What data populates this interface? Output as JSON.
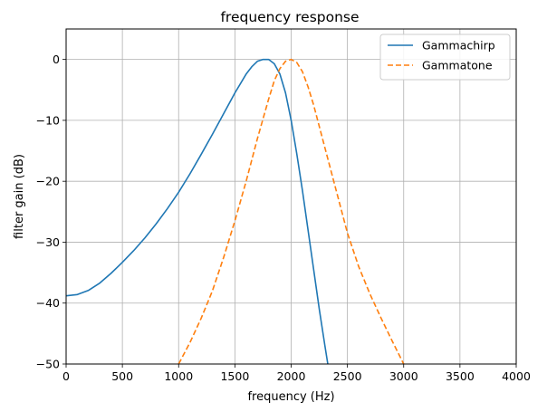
{
  "chart_data": {
    "type": "line",
    "title": "frequency response",
    "xlabel": "frequency (Hz)",
    "ylabel": "filter gain (dB)",
    "xlim": [
      0,
      4000
    ],
    "ylim": [
      -50,
      5
    ],
    "grid": true,
    "legend_position": "top-right",
    "x_ticks": [
      0,
      500,
      1000,
      1500,
      2000,
      2500,
      3000,
      3500,
      4000
    ],
    "x_tick_labels": [
      "0",
      "500",
      "1000",
      "1500",
      "2000",
      "2500",
      "3000",
      "3500",
      "4000"
    ],
    "y_ticks": [
      0,
      -10,
      -20,
      -30,
      -40,
      -50
    ],
    "y_tick_labels": [
      "0",
      "−10",
      "−20",
      "−30",
      "−40",
      "−50"
    ],
    "series": [
      {
        "name": "Gammachirp",
        "color": "#1f77b4",
        "style": "solid",
        "x": [
          0,
          100,
          200,
          300,
          400,
          500,
          600,
          700,
          800,
          900,
          1000,
          1100,
          1200,
          1300,
          1400,
          1500,
          1600,
          1650,
          1700,
          1750,
          1800,
          1850,
          1900,
          1950,
          2000,
          2050,
          2100,
          2150,
          2200,
          2250,
          2300,
          2330
        ],
        "y": [
          -38.8,
          -38.6,
          -37.9,
          -36.7,
          -35.1,
          -33.3,
          -31.4,
          -29.3,
          -27.0,
          -24.5,
          -21.8,
          -18.8,
          -15.6,
          -12.3,
          -8.9,
          -5.5,
          -2.4,
          -1.2,
          -0.3,
          0.0,
          0.0,
          -0.7,
          -2.4,
          -5.5,
          -10.0,
          -15.5,
          -21.5,
          -28.0,
          -34.5,
          -41.0,
          -47.0,
          -50.5
        ]
      },
      {
        "name": "Gammatone",
        "color": "#ff7f0e",
        "style": "dashed",
        "x": [
          1000,
          1100,
          1200,
          1300,
          1400,
          1500,
          1600,
          1700,
          1800,
          1850,
          1900,
          1950,
          2000,
          2050,
          2100,
          2150,
          2200,
          2300,
          2400,
          2500,
          2600,
          2700,
          2800,
          2900,
          3000
        ],
        "y": [
          -50.0,
          -46.5,
          -42.5,
          -38.0,
          -32.5,
          -26.5,
          -20.0,
          -13.0,
          -6.5,
          -3.5,
          -1.5,
          -0.3,
          0.0,
          -0.5,
          -2.0,
          -4.5,
          -7.5,
          -14.5,
          -21.5,
          -28.5,
          -34.0,
          -38.5,
          -42.5,
          -46.3,
          -50.0
        ]
      }
    ]
  }
}
